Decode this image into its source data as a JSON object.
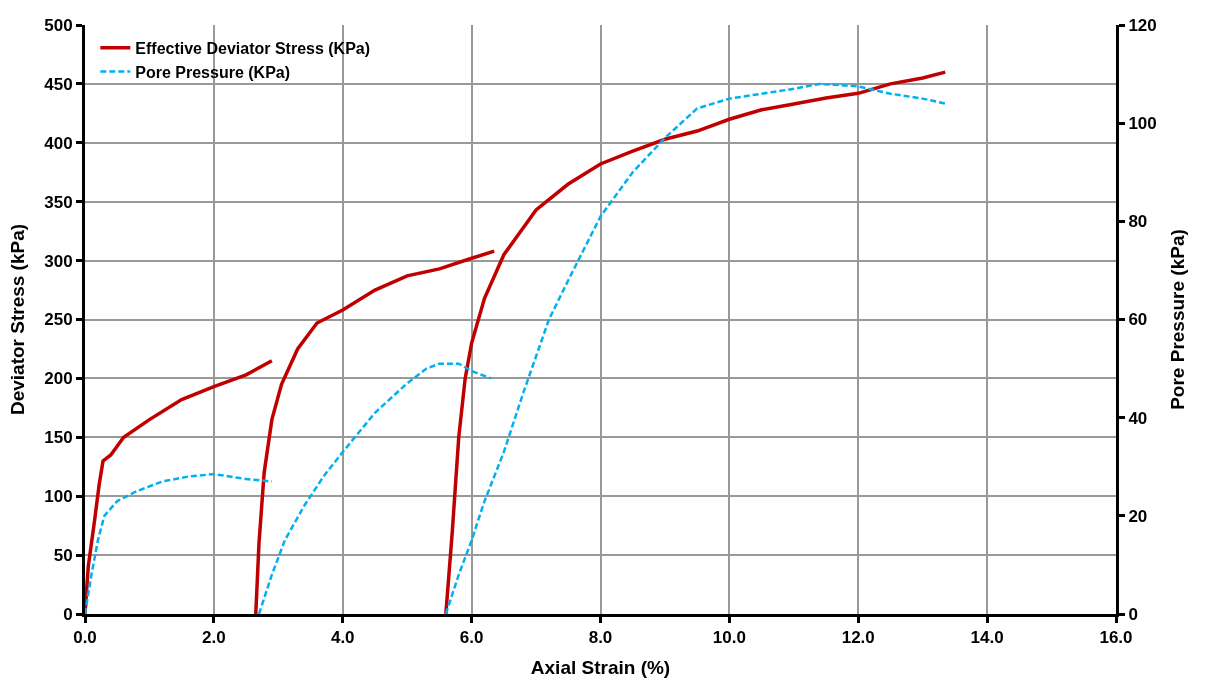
{
  "chart_data": {
    "type": "line",
    "xlabel": "Axial Strain (%)",
    "ylabel": "Deviator Stress (kPa)",
    "y2label": "Pore Pressure (kPa)",
    "xlim": [
      0,
      16
    ],
    "xticks": [
      {
        "value": 0,
        "label": "0.0"
      },
      {
        "value": 2,
        "label": "2.0"
      },
      {
        "value": 4,
        "label": "4.0"
      },
      {
        "value": 6,
        "label": "6.0"
      },
      {
        "value": 8,
        "label": "8.0"
      },
      {
        "value": 10,
        "label": "10.0"
      },
      {
        "value": 12,
        "label": "12.0"
      },
      {
        "value": 14,
        "label": "14.0"
      },
      {
        "value": 16,
        "label": "16.0"
      }
    ],
    "ylim": [
      0,
      500
    ],
    "yticks": [
      0,
      50,
      100,
      150,
      200,
      250,
      300,
      350,
      400,
      450,
      500
    ],
    "y2lim": [
      0,
      120
    ],
    "y2ticks": [
      0,
      20,
      40,
      60,
      80,
      100,
      120
    ],
    "grid": true,
    "legend": "top left",
    "marker": "none",
    "series": [
      {
        "name": "Effective Deviator Stress (KPa)",
        "color": "#c00000",
        "line_style": "solid",
        "x": [
          0,
          0.05,
          0.15,
          0.22,
          0.28,
          0.4,
          0.6,
          1.0,
          1.5,
          2.0,
          2.5,
          2.9,
          null,
          2.65,
          2.7,
          2.78,
          2.9,
          3.05,
          3.3,
          3.6,
          4.0,
          4.5,
          5.0,
          5.5,
          6.0,
          6.35,
          null,
          5.6,
          5.7,
          5.8,
          5.9,
          6.0,
          6.2,
          6.5,
          7.0,
          7.5,
          8.0,
          8.5,
          9.0,
          9.5,
          10.0,
          10.5,
          11.0,
          11.5,
          12.0,
          12.5,
          13.0,
          13.35
        ],
        "values": [
          0,
          40,
          80,
          110,
          130,
          135,
          150,
          165,
          182,
          193,
          203,
          215,
          null,
          0,
          60,
          120,
          165,
          195,
          225,
          247,
          258,
          275,
          287,
          293,
          302,
          308,
          null,
          0,
          70,
          150,
          200,
          230,
          268,
          305,
          343,
          365,
          382,
          393,
          403,
          410,
          420,
          428,
          433,
          438,
          442,
          450,
          455,
          460
        ]
      },
      {
        "name": "Pore Pressure (KPa)",
        "color": "#00b0f0",
        "line_style": "dashed",
        "axis": "y2",
        "x": [
          0,
          0.1,
          0.2,
          0.3,
          0.5,
          0.8,
          1.2,
          1.6,
          2.0,
          2.5,
          2.9,
          null,
          2.7,
          2.9,
          3.1,
          3.4,
          3.7,
          4.0,
          4.5,
          5.0,
          5.3,
          5.5,
          5.8,
          6.0,
          6.3,
          null,
          5.6,
          5.8,
          6.0,
          6.2,
          6.5,
          6.8,
          7.2,
          7.5,
          8.0,
          8.5,
          9.0,
          9.5,
          10.0,
          10.5,
          11.0,
          11.4,
          12.0,
          12.5,
          13.0,
          13.35
        ],
        "values": [
          0,
          8,
          15,
          20,
          23,
          25,
          27,
          28,
          28.5,
          27.5,
          27,
          null,
          0,
          8,
          15,
          22,
          28,
          33,
          41,
          47,
          50,
          51,
          51,
          49.5,
          48,
          null,
          0,
          8,
          15,
          23,
          33,
          45,
          60,
          68,
          81,
          90,
          97,
          103,
          105,
          106,
          107,
          108,
          107.5,
          106,
          105,
          104
        ]
      }
    ]
  }
}
